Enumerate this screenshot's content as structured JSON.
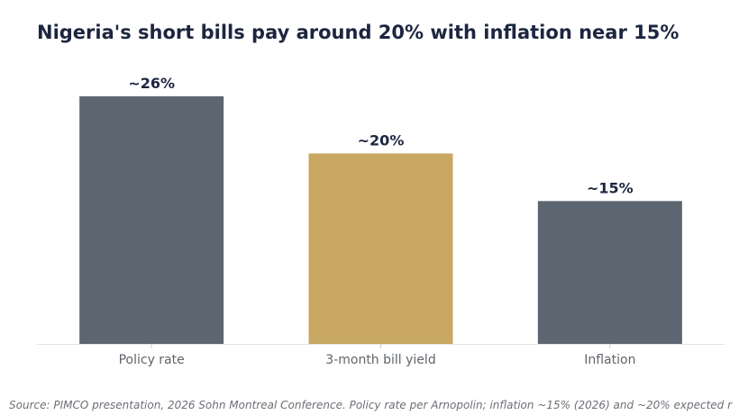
{
  "title": "Nigeria's short bills pay around 20% with inflation near 15%",
  "source": "Source: PIMCO presentation, 2026 Sohn Montreal Conference. Policy rate per Arnopolin; inflation ~15% (2026) and ~20% expected r",
  "chart_data": {
    "type": "bar",
    "categories": [
      "Policy rate",
      "3-month bill yield",
      "Inflation"
    ],
    "values": [
      26,
      20,
      15
    ],
    "value_labels": [
      "~26%",
      "~20%",
      "~15%"
    ],
    "colors": [
      "#5c6670",
      "#c8a862",
      "#5c6670"
    ],
    "ylim": [
      0,
      26
    ],
    "grid": false,
    "legend": "none",
    "xlabel": "",
    "ylabel": ""
  }
}
